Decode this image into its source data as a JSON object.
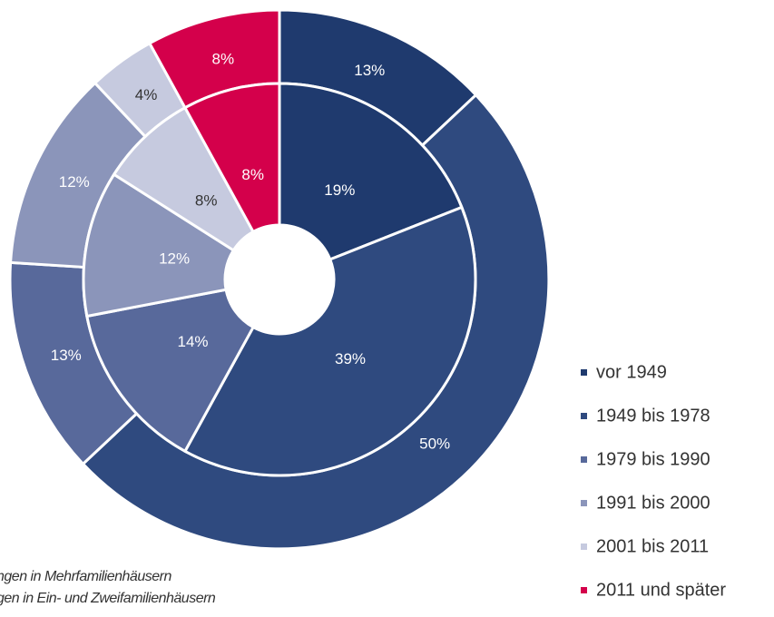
{
  "chart_data": {
    "type": "donut",
    "categories": [
      "vor 1949",
      "1949 bis 1978",
      "1979 bis 1990",
      "1991 bis 2000",
      "2001 bis 2011",
      "2011 und später"
    ],
    "colors": [
      "#1f3a6e",
      "#2f4a7f",
      "#58699b",
      "#8b95ba",
      "#c6cadf",
      "#d4004b"
    ],
    "rings": [
      {
        "name": "ngen in Mehrfamilienhäusern",
        "values": [
          13,
          50,
          13,
          12,
          4,
          8
        ],
        "value_labels": [
          "13%",
          "50%",
          "13%",
          "12%",
          "4%",
          "8%"
        ]
      },
      {
        "name": "gen in Ein- und Zweifamilienhäusern",
        "values": [
          19,
          39,
          14,
          12,
          8,
          8
        ],
        "value_labels": [
          "19%",
          "39%",
          "14%",
          "12%",
          "8%",
          "8%"
        ]
      }
    ],
    "legend": "right"
  }
}
